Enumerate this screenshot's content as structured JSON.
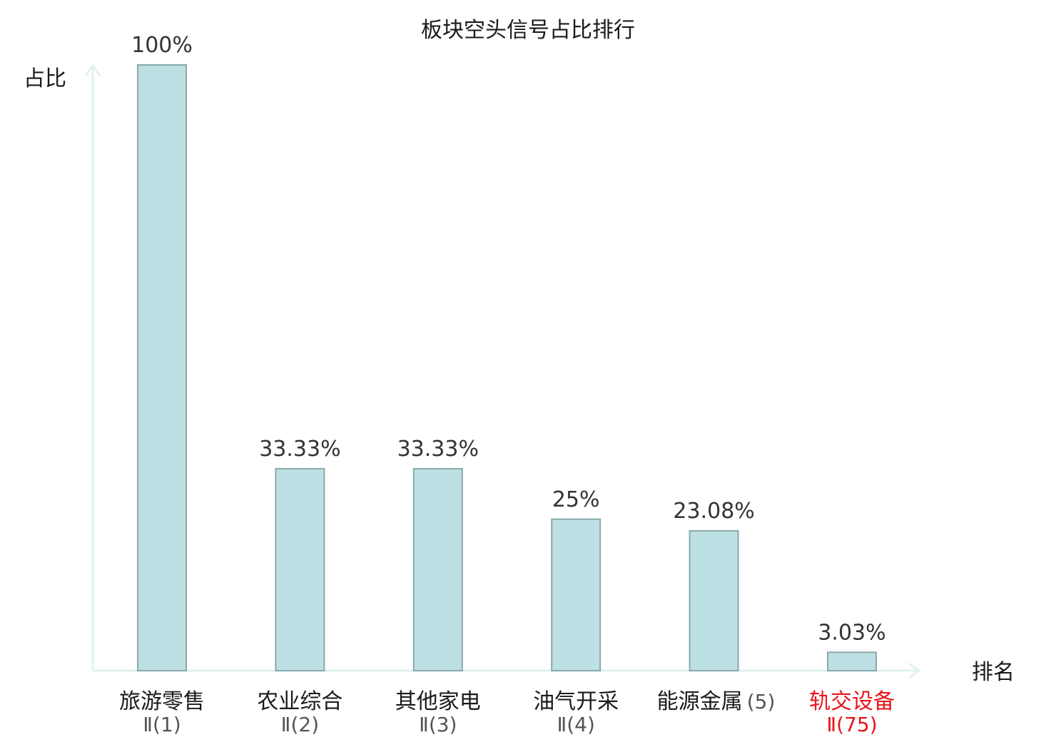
{
  "chart_data": {
    "type": "bar",
    "title": "板块空头信号占比排行",
    "ylabel": "占比",
    "xlabel": "排名",
    "ylim": [
      0,
      100
    ],
    "grid": false,
    "categories": [
      {
        "name": "旅游零售",
        "rank": "Ⅱ(1)",
        "highlight": false
      },
      {
        "name": "农业综合",
        "rank": "Ⅱ(2)",
        "highlight": false
      },
      {
        "name": "其他家电",
        "rank": "Ⅱ(3)",
        "highlight": false
      },
      {
        "name": "油气开采",
        "rank": "Ⅱ(4)",
        "highlight": false
      },
      {
        "name": "能源金属",
        "rank": "(5)",
        "highlight": false
      },
      {
        "name": "轨交设备",
        "rank": "Ⅱ(75)",
        "highlight": true
      }
    ],
    "values": [
      100,
      33.33,
      33.33,
      25,
      23.08,
      3.03
    ],
    "value_labels": [
      "100%",
      "33.33%",
      "33.33%",
      "25%",
      "23.08%",
      "3.03%"
    ],
    "colors": {
      "bar_fill": "#bce0e3",
      "bar_stroke": "#8aa9ab",
      "axis": "#dff2ef",
      "highlight": "#e8141b"
    }
  }
}
